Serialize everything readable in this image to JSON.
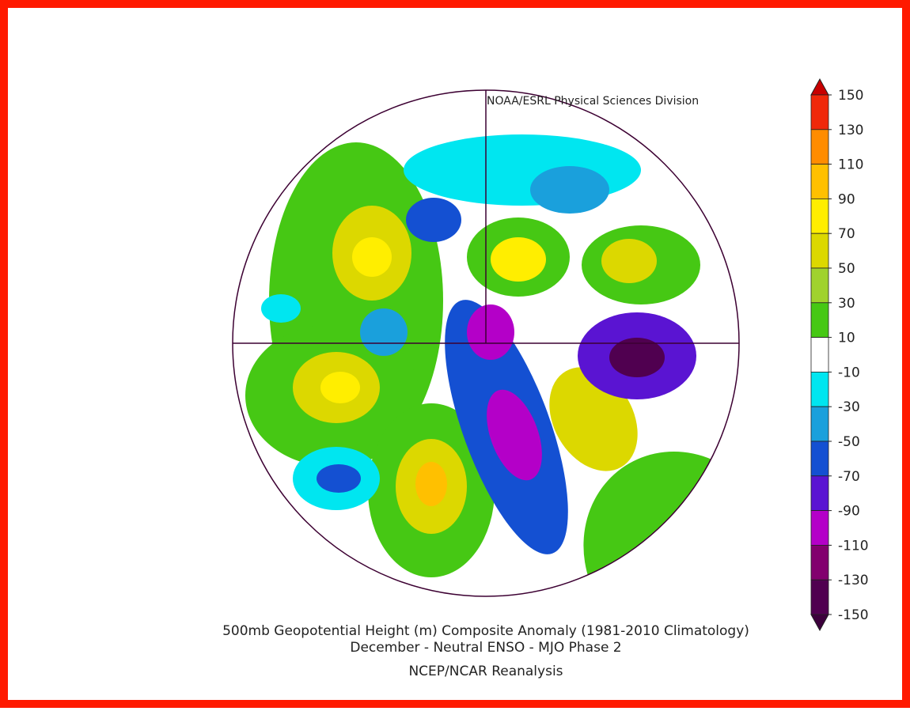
{
  "header": {
    "credit": "NOAA/ESRL Physical Sciences Division"
  },
  "colorbar": {
    "ticks": [
      150,
      130,
      110,
      90,
      70,
      50,
      30,
      10,
      -10,
      -30,
      -50,
      -70,
      -90,
      -110,
      -130,
      -150
    ],
    "colors": [
      "#f0280a",
      "#ff8c00",
      "#ffc000",
      "#ffee00",
      "#dcd800",
      "#a0d22d",
      "#46c814",
      "#ffffff",
      "#00e6f0",
      "#1aa0dc",
      "#1450d2",
      "#5a14d2",
      "#b400c8",
      "#82006e",
      "#500050"
    ],
    "over_color": "#c80000",
    "under_color": "#3c003c"
  },
  "caption": {
    "title": "500mb Geopotential Height (m) Composite Anomaly (1981-2010 Climatology)",
    "subtitle": "December - Neutral ENSO - MJO Phase 2",
    "source": "NCEP/NCAR Reanalysis"
  }
}
